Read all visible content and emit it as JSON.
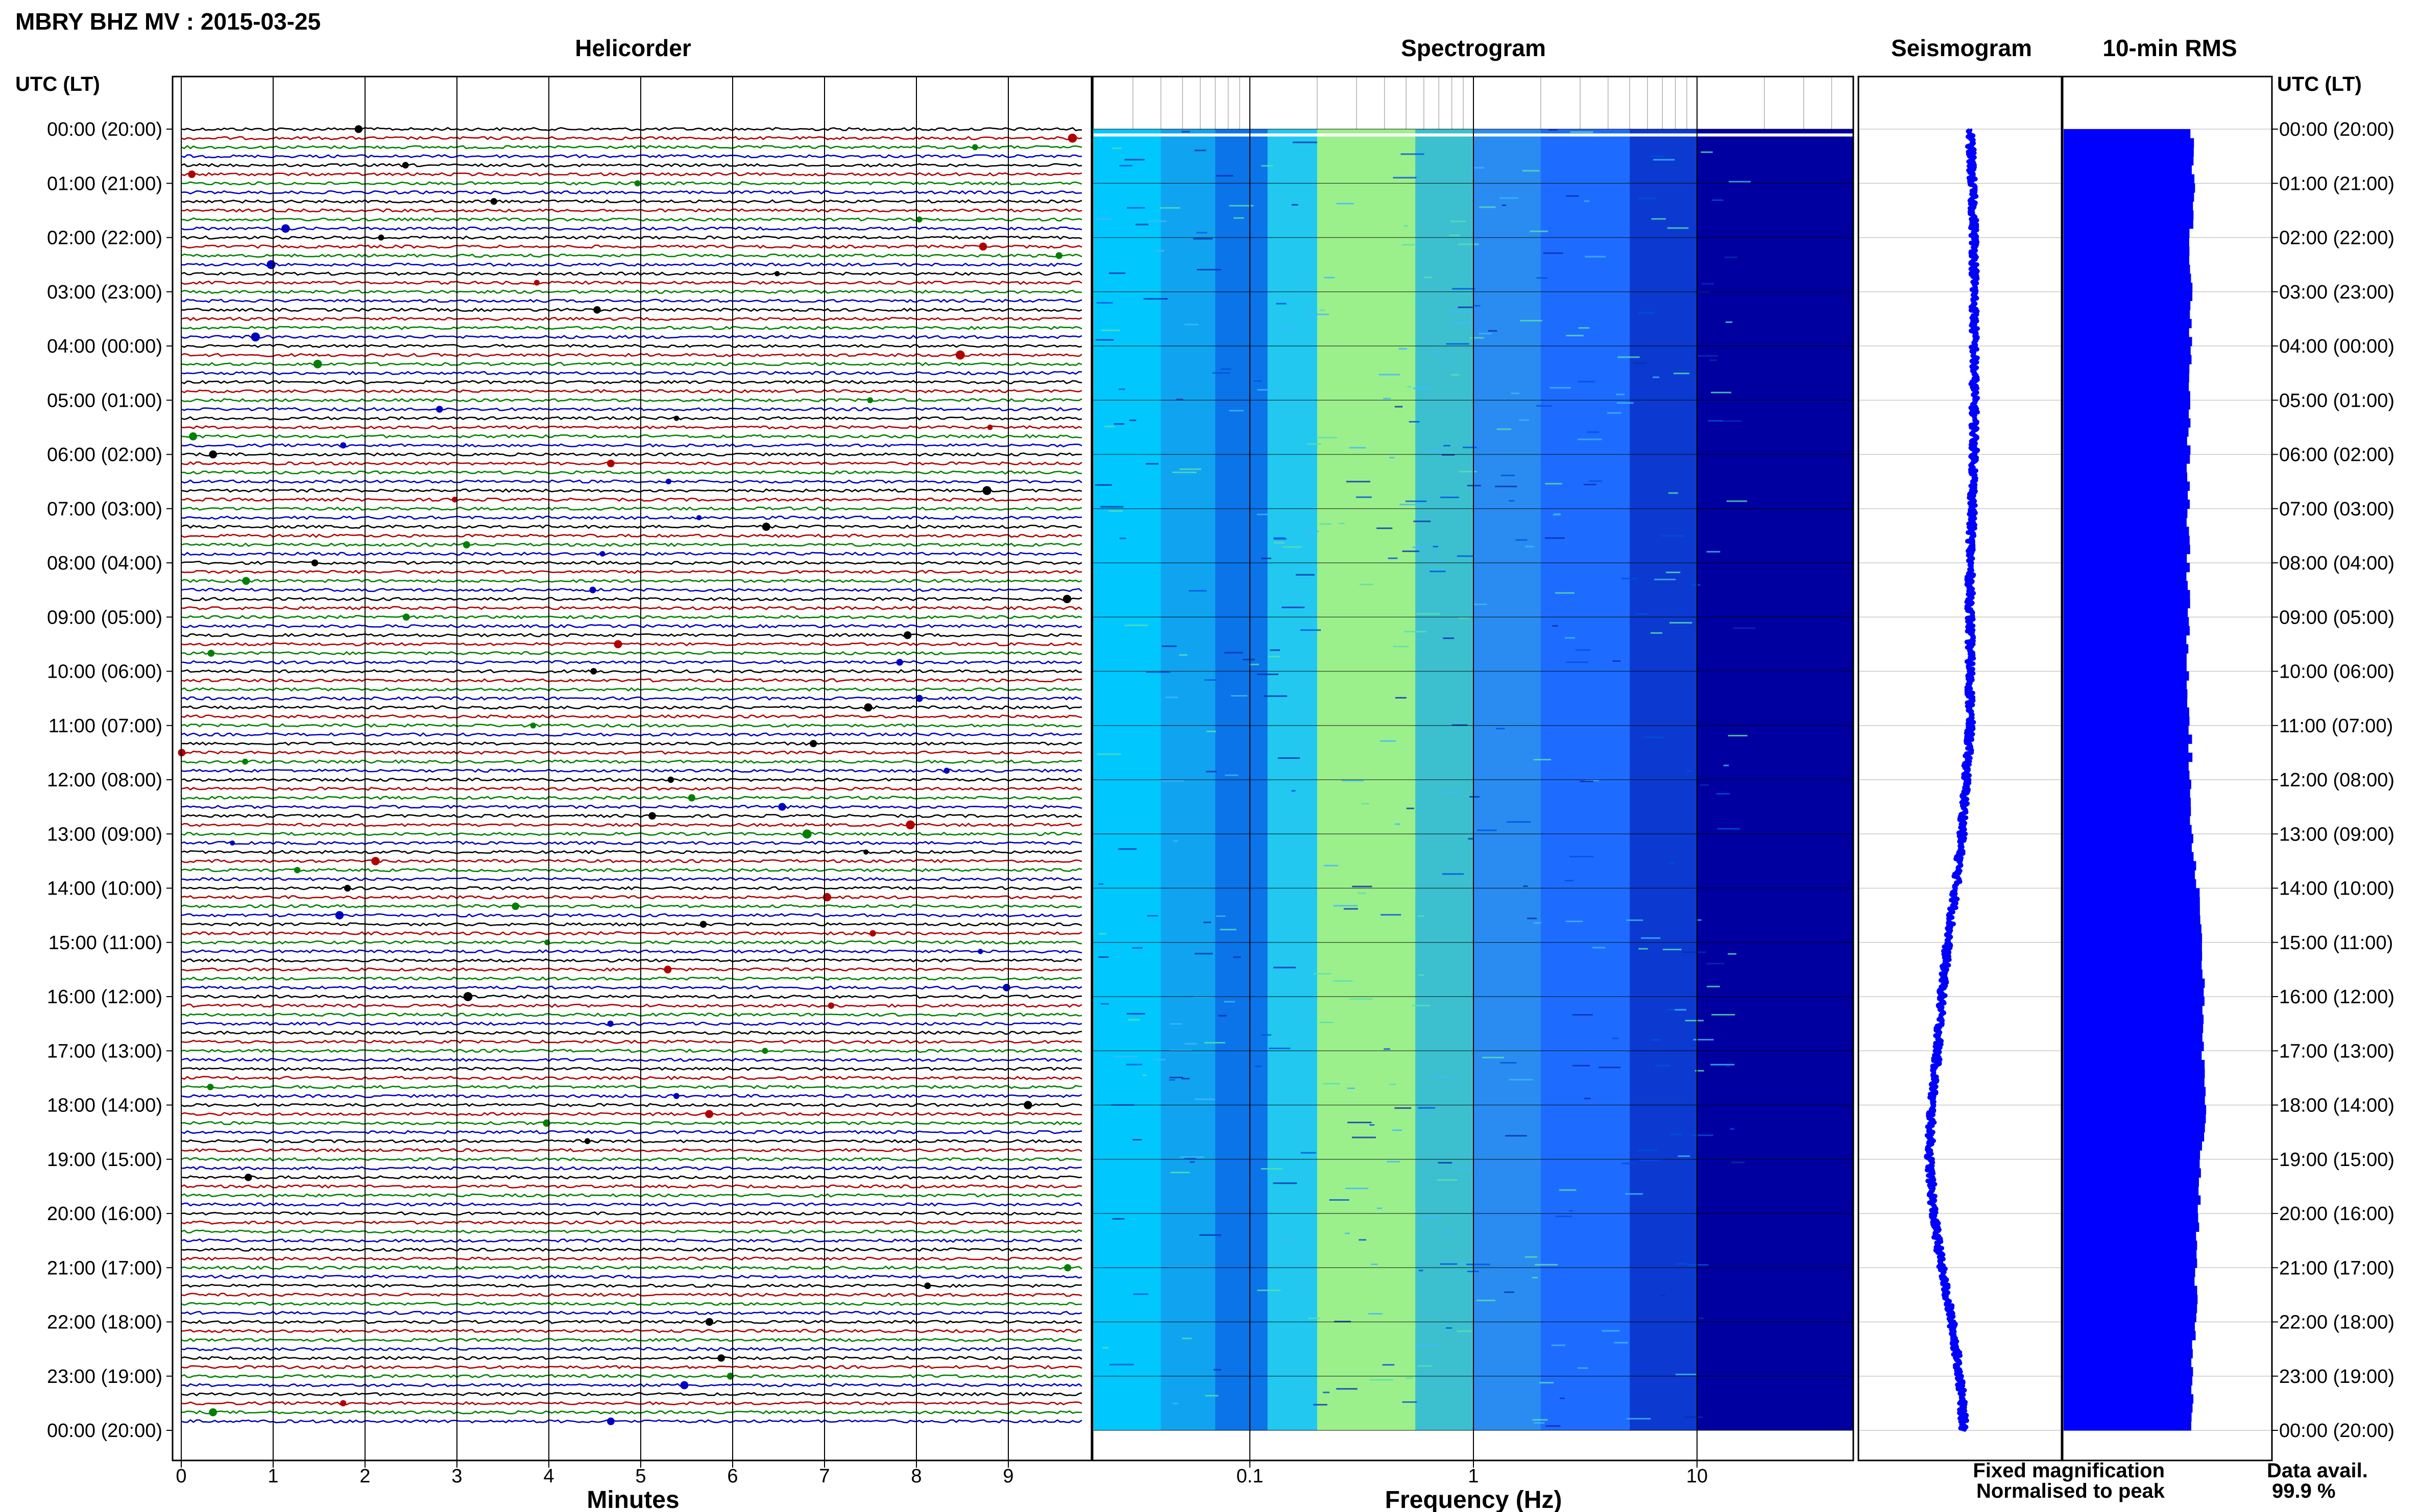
{
  "title": "MBRY BHZ MV : 2015-03-25",
  "time_axis_label": "UTC (LT)",
  "panels": {
    "helicorder": "Helicorder",
    "spectrogram": "Spectrogram",
    "seismogram": "Seismogram",
    "rms": "10-min RMS"
  },
  "time_ticks": [
    "00:00 (20:00)",
    "01:00 (21:00)",
    "02:00 (22:00)",
    "03:00 (23:00)",
    "04:00 (00:00)",
    "05:00 (01:00)",
    "06:00 (02:00)",
    "07:00 (03:00)",
    "08:00 (04:00)",
    "09:00 (05:00)",
    "10:00 (06:00)",
    "11:00 (07:00)",
    "12:00 (08:00)",
    "13:00 (09:00)",
    "14:00 (10:00)",
    "15:00 (11:00)",
    "16:00 (12:00)",
    "17:00 (13:00)",
    "18:00 (14:00)",
    "19:00 (15:00)",
    "20:00 (16:00)",
    "21:00 (17:00)",
    "22:00 (18:00)",
    "23:00 (19:00)",
    "00:00 (20:00)"
  ],
  "minutes_ticks": [
    "0",
    "1",
    "2",
    "3",
    "4",
    "5",
    "6",
    "7",
    "8",
    "9"
  ],
  "minutes_label": "Minutes",
  "freq_ticks": [
    "0.1",
    "1",
    "10"
  ],
  "freq_label": "Frequency (Hz)",
  "legend": {
    "fixed": "Fixed magnification",
    "normalised": "Normalised to peak",
    "fixed_color": "#1a1aff",
    "normalised_color": "#ff1a1a"
  },
  "data_avail": {
    "label": "Data avail.",
    "value": "99.9 %"
  },
  "colors": {
    "trace_cycle": [
      "#000000",
      "#b00000",
      "#008000",
      "#0000c0"
    ],
    "seismogram": "#0000ff",
    "rms": "#0000ff",
    "spectrogram_scale": [
      "#00c8ff",
      "#9cf08c",
      "#1e6cff",
      "#0000a0"
    ]
  },
  "chart_data": {
    "type": "heatmap",
    "time_range_hours": [
      0,
      24
    ],
    "helicorder": {
      "row_minutes": 10,
      "minutes_range": [
        0,
        10
      ]
    },
    "spectrogram": {
      "freq_range_hz": [
        0.02,
        50
      ],
      "freq_scale": "log"
    },
    "rms_hourly": [
      0.62,
      0.63,
      0.61,
      0.62,
      0.61,
      0.61,
      0.6,
      0.6,
      0.6,
      0.6,
      0.6,
      0.61,
      0.61,
      0.62,
      0.65,
      0.67,
      0.67,
      0.67,
      0.68,
      0.66,
      0.65,
      0.64,
      0.63,
      0.62,
      0.62
    ],
    "seismogram_offset_hourly": [
      0.55,
      0.56,
      0.57,
      0.57,
      0.57,
      0.57,
      0.57,
      0.56,
      0.55,
      0.55,
      0.55,
      0.55,
      0.53,
      0.51,
      0.48,
      0.44,
      0.41,
      0.39,
      0.36,
      0.35,
      0.37,
      0.41,
      0.46,
      0.5,
      0.52
    ]
  }
}
